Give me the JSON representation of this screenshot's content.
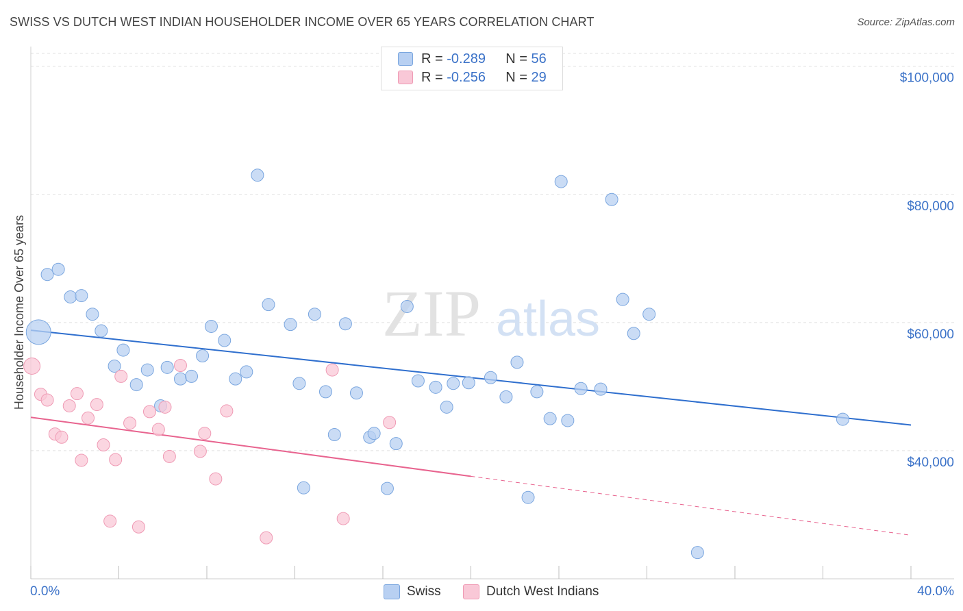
{
  "header": {
    "title": "SWISS VS DUTCH WEST INDIAN HOUSEHOLDER INCOME OVER 65 YEARS CORRELATION CHART",
    "source": "Source: ZipAtlas.com"
  },
  "watermark": {
    "zip": "ZIP",
    "atlas": "atlas"
  },
  "legend": {
    "r_label": "R =",
    "n_label": "N =",
    "swiss": {
      "r": "-0.289",
      "n": "56"
    },
    "dwi": {
      "r": "-0.256",
      "n": "29"
    }
  },
  "colors": {
    "swiss_fill": "#b8d0f2",
    "swiss_stroke": "#7aa6df",
    "swiss_line": "#2f6fce",
    "dwi_fill": "#f9c8d7",
    "dwi_stroke": "#ef9ab4",
    "dwi_line": "#e8648f",
    "axis_label": "#3b72c8",
    "grid": "#e0e0e0"
  },
  "chart_data": {
    "type": "scatter",
    "title": "SWISS VS DUTCH WEST INDIAN HOUSEHOLDER INCOME OVER 65 YEARS CORRELATION CHART",
    "xlabel": "",
    "ylabel": "Householder Income Over 65 years",
    "xlim": [
      0,
      40
    ],
    "ylim": [
      20000,
      102000
    ],
    "x_tick_labels": [
      "0.0%",
      "40.0%"
    ],
    "y_ticks": [
      40000,
      60000,
      80000,
      100000
    ],
    "y_tick_labels": [
      "$40,000",
      "$60,000",
      "$80,000",
      "$100,000"
    ],
    "grid": true,
    "legend_position": "top-center",
    "series": [
      {
        "name": "Swiss",
        "points": [
          [
            0.35,
            58500
          ],
          [
            0.75,
            67500
          ],
          [
            1.25,
            68300
          ],
          [
            1.8,
            64000
          ],
          [
            2.3,
            64200
          ],
          [
            2.8,
            61300
          ],
          [
            3.2,
            58700
          ],
          [
            3.8,
            53200
          ],
          [
            4.2,
            55700
          ],
          [
            4.8,
            50300
          ],
          [
            5.3,
            52600
          ],
          [
            5.9,
            47000
          ],
          [
            6.2,
            53000
          ],
          [
            6.8,
            51200
          ],
          [
            7.3,
            51600
          ],
          [
            7.8,
            54800
          ],
          [
            8.2,
            59400
          ],
          [
            8.8,
            57200
          ],
          [
            9.3,
            51200
          ],
          [
            9.8,
            52300
          ],
          [
            10.3,
            83000
          ],
          [
            10.8,
            62800
          ],
          [
            11.8,
            59700
          ],
          [
            12.2,
            50500
          ],
          [
            12.4,
            34200
          ],
          [
            12.9,
            61300
          ],
          [
            13.4,
            49200
          ],
          [
            13.8,
            42500
          ],
          [
            14.3,
            59800
          ],
          [
            14.8,
            49000
          ],
          [
            15.4,
            42100
          ],
          [
            15.6,
            42700
          ],
          [
            16.2,
            34100
          ],
          [
            16.6,
            41100
          ],
          [
            17.1,
            62500
          ],
          [
            17.6,
            50900
          ],
          [
            18.4,
            49900
          ],
          [
            18.9,
            46800
          ],
          [
            19.2,
            50500
          ],
          [
            19.9,
            50600
          ],
          [
            20.9,
            51400
          ],
          [
            21.6,
            48400
          ],
          [
            22.1,
            53800
          ],
          [
            22.6,
            32700
          ],
          [
            23.0,
            49200
          ],
          [
            23.6,
            45000
          ],
          [
            24.1,
            82000
          ],
          [
            24.4,
            44700
          ],
          [
            25.0,
            49700
          ],
          [
            25.9,
            49600
          ],
          [
            26.4,
            79200
          ],
          [
            26.9,
            63600
          ],
          [
            27.4,
            58300
          ],
          [
            28.1,
            61300
          ],
          [
            30.3,
            24100
          ],
          [
            36.9,
            44900
          ]
        ],
        "sizes": [
          18,
          9,
          9,
          9,
          9,
          9,
          9,
          9,
          9,
          9,
          9,
          9,
          9,
          9,
          9,
          9,
          9,
          9,
          9,
          9,
          9,
          9,
          9,
          9,
          9,
          9,
          9,
          9,
          9,
          9,
          9,
          9,
          9,
          9,
          9,
          9,
          9,
          9,
          9,
          9,
          9,
          9,
          9,
          9,
          9,
          9,
          9,
          9,
          9,
          9,
          9,
          9,
          9,
          9,
          9,
          9
        ],
        "trend": {
          "x": [
            0,
            40
          ],
          "y": [
            58800,
            44000
          ],
          "dashed_from": null
        }
      },
      {
        "name": "Dutch West Indians",
        "points": [
          [
            0.05,
            53200
          ],
          [
            0.45,
            48800
          ],
          [
            0.75,
            47900
          ],
          [
            1.1,
            42600
          ],
          [
            1.4,
            42100
          ],
          [
            1.75,
            47000
          ],
          [
            2.1,
            48900
          ],
          [
            2.3,
            38500
          ],
          [
            2.6,
            45100
          ],
          [
            3.0,
            47200
          ],
          [
            3.3,
            40900
          ],
          [
            3.6,
            29000
          ],
          [
            3.85,
            38600
          ],
          [
            4.1,
            51600
          ],
          [
            4.5,
            44300
          ],
          [
            4.9,
            28100
          ],
          [
            5.4,
            46100
          ],
          [
            5.8,
            43300
          ],
          [
            6.1,
            46800
          ],
          [
            6.3,
            39100
          ],
          [
            6.8,
            53300
          ],
          [
            7.7,
            39900
          ],
          [
            7.9,
            42700
          ],
          [
            8.4,
            35600
          ],
          [
            8.9,
            46200
          ],
          [
            10.7,
            26400
          ],
          [
            13.7,
            52600
          ],
          [
            14.2,
            29400
          ],
          [
            16.3,
            44400
          ]
        ],
        "sizes": [
          12,
          9,
          9,
          9,
          9,
          9,
          9,
          9,
          9,
          9,
          9,
          9,
          9,
          9,
          9,
          9,
          9,
          9,
          9,
          9,
          9,
          9,
          9,
          9,
          9,
          9,
          9,
          9,
          9
        ],
        "trend": {
          "x": [
            0,
            40
          ],
          "y": [
            45200,
            26800
          ],
          "dashed_from": 20
        }
      }
    ]
  }
}
